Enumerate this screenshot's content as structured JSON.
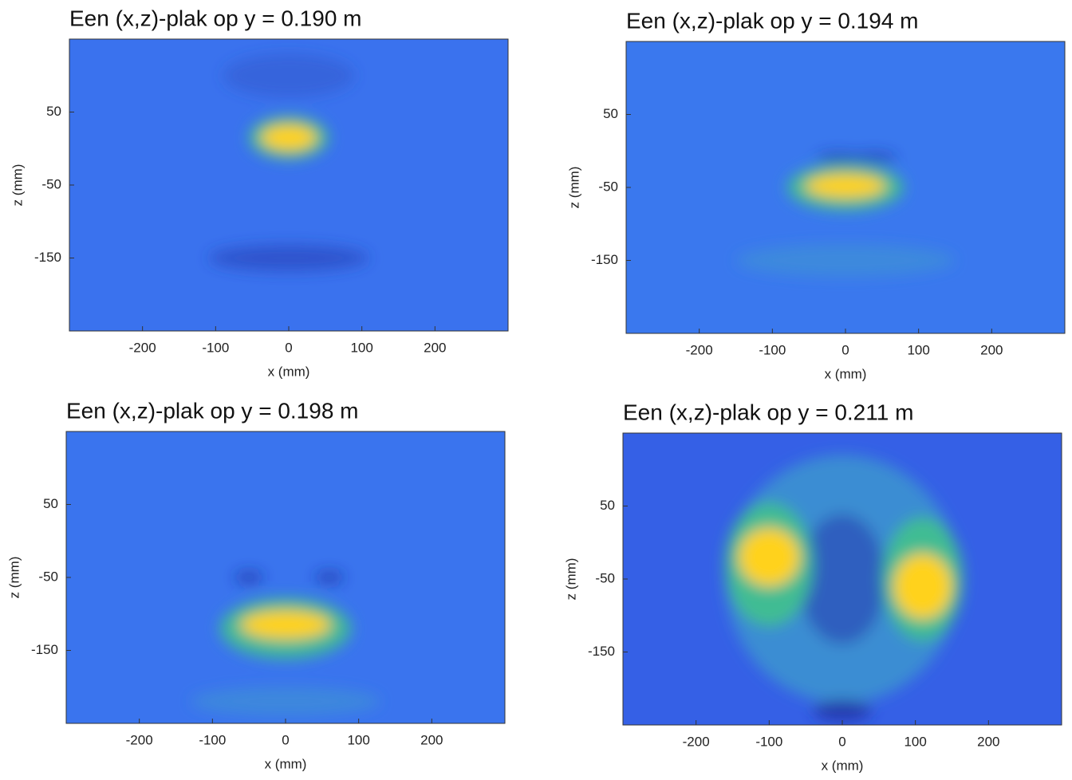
{
  "chart_data": [
    {
      "type": "heatmap",
      "title": "Een (x,z)-plak op y = 0.190 m",
      "xlabel": "x (mm)",
      "ylabel": "z (mm)",
      "xlim": [
        -300,
        300
      ],
      "ylim": [
        -250,
        150
      ],
      "xticks": [
        -200,
        -100,
        0,
        100,
        200
      ],
      "yticks": [
        -150,
        -50,
        50
      ],
      "color": "#3a72ee"
    },
    {
      "type": "heatmap",
      "title": "Een (x,z)-plak op y = 0.194 m",
      "xlabel": "x (mm)",
      "ylabel": "z (mm)",
      "xlim": [
        -300,
        300
      ],
      "ylim": [
        -250,
        150
      ],
      "xticks": [
        -200,
        -100,
        0,
        100,
        200
      ],
      "yticks": [
        -150,
        -50,
        50
      ],
      "color": "#3a78ee"
    },
    {
      "type": "heatmap",
      "title": "Een (x,z)-plak op y = 0.198 m",
      "xlabel": "x (mm)",
      "ylabel": "z (mm)",
      "xlim": [
        -300,
        300
      ],
      "ylim": [
        -250,
        150
      ],
      "xticks": [
        -200,
        -100,
        0,
        100,
        200
      ],
      "yticks": [
        -150,
        -50,
        50
      ],
      "color": "#3a74ee"
    },
    {
      "type": "heatmap",
      "title": "Een (x,z)-plak op y = 0.211 m",
      "xlabel": "x (mm)",
      "ylabel": "z (mm)",
      "xlim": [
        -300,
        300
      ],
      "ylim": [
        -250,
        150
      ],
      "xticks": [
        -200,
        -100,
        0,
        100,
        200
      ],
      "yticks": [
        -150,
        -50,
        50
      ],
      "color": "#3560e6"
    }
  ]
}
